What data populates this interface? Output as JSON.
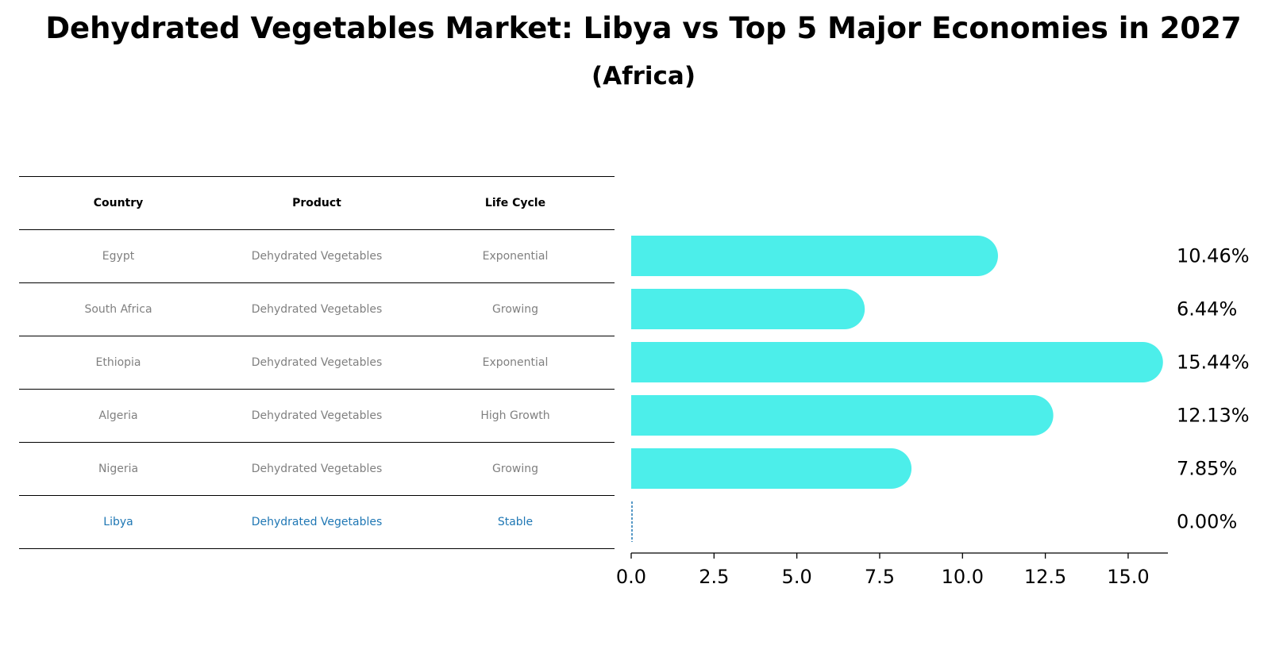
{
  "title": "Dehydrated Vegetables Market: Libya vs Top 5 Major Economies in 2027",
  "subtitle": "(Africa)",
  "table": {
    "headers": [
      "Country",
      "Product",
      "Life Cycle"
    ],
    "rows": [
      {
        "country": "Egypt",
        "product": "Dehydrated Vegetables",
        "life_cycle": "Exponential"
      },
      {
        "country": "South Africa",
        "product": "Dehydrated Vegetables",
        "life_cycle": "Growing"
      },
      {
        "country": "Ethiopia",
        "product": "Dehydrated Vegetables",
        "life_cycle": "Exponential"
      },
      {
        "country": "Algeria",
        "product": "Dehydrated Vegetables",
        "life_cycle": "High Growth"
      },
      {
        "country": "Nigeria",
        "product": "Dehydrated Vegetables",
        "life_cycle": "Growing"
      },
      {
        "country": "Libya",
        "product": "Dehydrated Vegetables",
        "life_cycle": "Stable"
      }
    ],
    "highlight_row": 5
  },
  "colors": {
    "bar": "#4CEEEA",
    "highlight": "#1f77b4",
    "muted_text": "#808080"
  },
  "chart_data": {
    "type": "bar",
    "orientation": "horizontal",
    "categories": [
      "Egypt",
      "South Africa",
      "Ethiopia",
      "Algeria",
      "Nigeria",
      "Libya"
    ],
    "values": [
      10.46,
      6.44,
      15.44,
      12.13,
      7.85,
      0.0
    ],
    "value_labels": [
      "10.46%",
      "6.44%",
      "15.44%",
      "12.13%",
      "7.85%",
      "0.00%"
    ],
    "xlim": [
      0,
      16.2
    ],
    "xticks": [
      0.0,
      2.5,
      5.0,
      7.5,
      10.0,
      12.5,
      15.0
    ],
    "xtick_labels": [
      "0.0",
      "2.5",
      "5.0",
      "7.5",
      "10.0",
      "12.5",
      "15.0"
    ],
    "grid": false
  }
}
